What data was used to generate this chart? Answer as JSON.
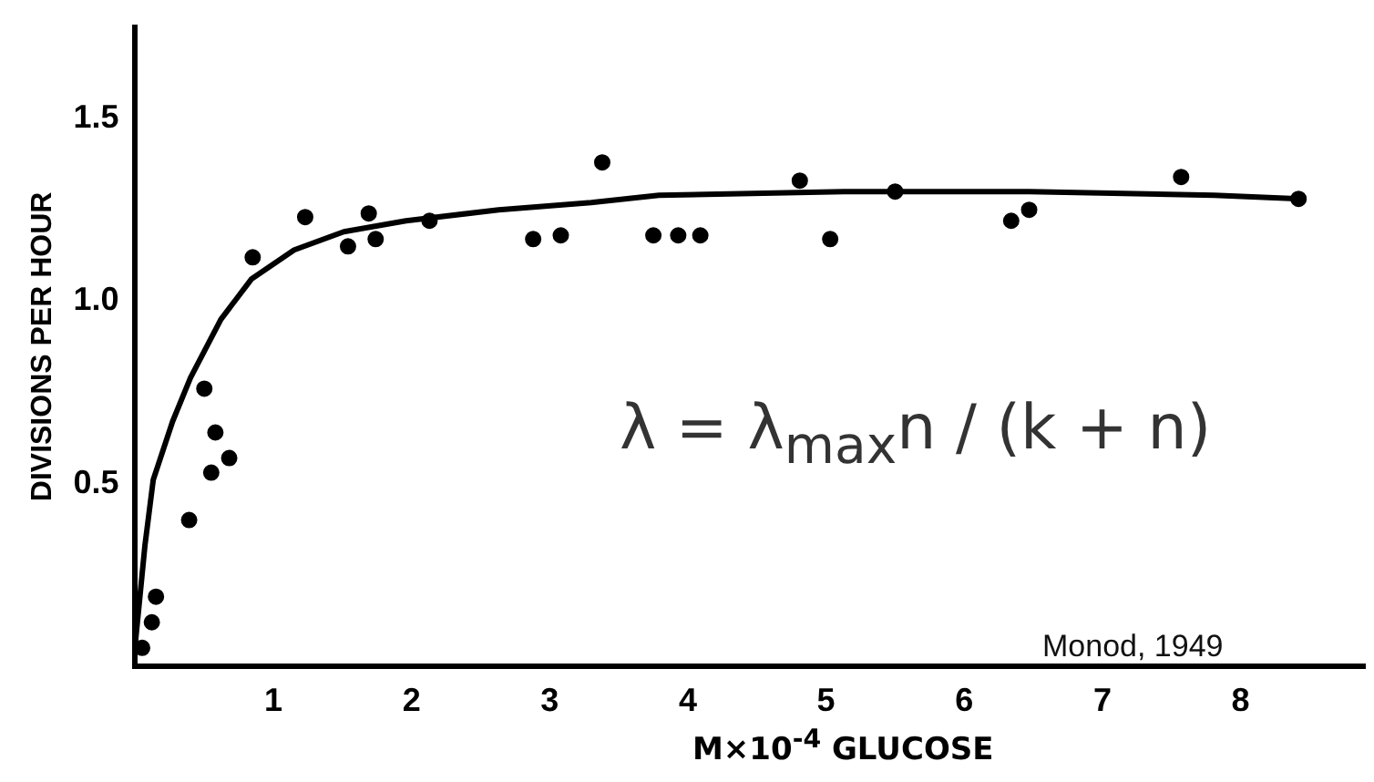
{
  "chart_data": {
    "type": "scatter",
    "xlabel": "M×10$^{-4}$ GLUCOSE",
    "ylabel": "DIVISIONS PER HOUR",
    "xlim": [
      0,
      8.9
    ],
    "ylim": [
      0,
      1.75
    ],
    "xticks": [
      1,
      2,
      3,
      4,
      5,
      6,
      7,
      8
    ],
    "yticks": [
      0.5,
      {
        "value": 1,
        "label": "1.0"
      },
      1.5
    ],
    "grid": false,
    "legend": false,
    "series": [
      {
        "marker": "circle",
        "color": "#000000",
        "x": [
          0.05,
          0.12,
          0.15,
          0.39,
          0.5,
          0.55,
          0.58,
          0.68,
          0.85,
          1.23,
          1.54,
          1.69,
          1.74,
          2.13,
          2.88,
          3.08,
          3.38,
          3.75,
          3.93,
          4.09,
          4.81,
          5.03,
          5.5,
          6.34,
          6.47,
          7.57,
          8.42
        ],
        "values": [
          0.05,
          0.12,
          0.19,
          0.4,
          0.76,
          0.53,
          0.64,
          0.57,
          1.12,
          1.23,
          1.15,
          1.24,
          1.17,
          1.22,
          1.17,
          1.18,
          1.38,
          1.18,
          1.18,
          1.18,
          1.33,
          1.17,
          1.3,
          1.22,
          1.25,
          1.34,
          1.28
        ]
      },
      {
        "type": "line",
        "marker": "none",
        "color": "#000000",
        "line_style": "solid",
        "x": [
          0,
          0.07,
          0.13,
          0.27,
          0.4,
          0.62,
          0.84,
          1.15,
          1.51,
          1.96,
          2.63,
          3.3,
          3.79,
          5.13,
          6.47,
          7.81,
          8.44
        ],
        "values": [
          0.06,
          0.33,
          0.51,
          0.67,
          0.79,
          0.95,
          1.06,
          1.14,
          1.19,
          1.22,
          1.25,
          1.27,
          1.29,
          1.3,
          1.3,
          1.29,
          1.28
        ]
      }
    ],
    "annotations": [
      "λ = λ$_{max}$n / (k + n)",
      "Monod, 1949"
    ]
  }
}
